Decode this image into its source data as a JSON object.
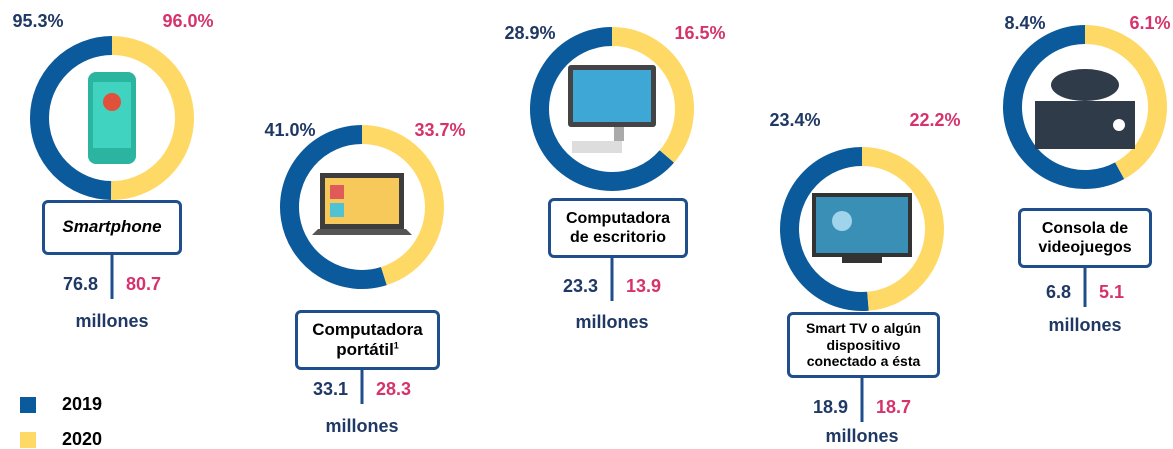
{
  "chart_data": [
    {
      "type": "pie",
      "title": "Smartphone",
      "categories": [
        "2019",
        "2020"
      ],
      "values": [
        95.3,
        96.0
      ],
      "value_labels": [
        "95.3%",
        "96.0%"
      ],
      "millions": [
        76.8,
        80.7
      ],
      "unit": "millones"
    },
    {
      "type": "pie",
      "title": "Computadora portátil",
      "footnote": "1",
      "categories": [
        "2019",
        "2020"
      ],
      "values": [
        41.0,
        33.7
      ],
      "value_labels": [
        "41.0%",
        "33.7%"
      ],
      "millions": [
        33.1,
        28.3
      ],
      "unit": "millones"
    },
    {
      "type": "pie",
      "title": "Computadora de escritorio",
      "categories": [
        "2019",
        "2020"
      ],
      "values": [
        28.9,
        16.5
      ],
      "value_labels": [
        "28.9%",
        "16.5%"
      ],
      "millions": [
        23.3,
        13.9
      ],
      "unit": "millones"
    },
    {
      "type": "pie",
      "title": "Smart TV o algún dispositivo conectado a ésta",
      "categories": [
        "2019",
        "2020"
      ],
      "values": [
        23.4,
        22.2
      ],
      "value_labels": [
        "23.4%",
        "22.2%"
      ],
      "millions": [
        18.9,
        18.7
      ],
      "unit": "millones"
    },
    {
      "type": "pie",
      "title": "Consola de videojuegos",
      "categories": [
        "2019",
        "2020"
      ],
      "values": [
        8.4,
        6.1
      ],
      "value_labels": [
        "8.4%",
        "6.1%"
      ],
      "millions": [
        6.8,
        5.1
      ],
      "unit": "millones"
    }
  ],
  "legend": [
    {
      "name": "2019",
      "color": "#0b5a9c"
    },
    {
      "name": "2020",
      "color": "#ffd966"
    }
  ],
  "text_colors": [
    "#1f3864",
    "#d6336c"
  ]
}
